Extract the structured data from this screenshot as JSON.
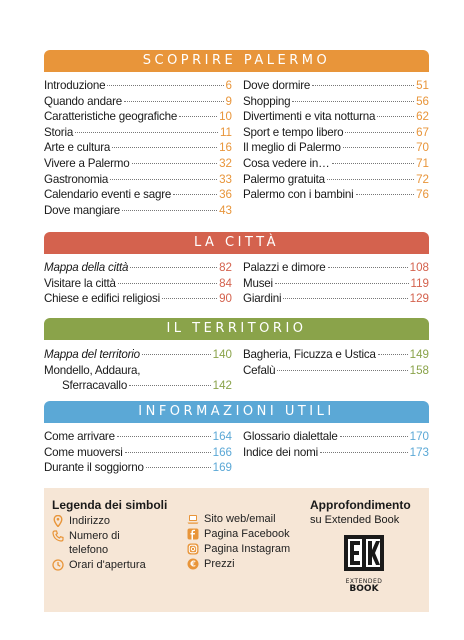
{
  "colors": {
    "orange": "#e8953a",
    "red": "#d4624e",
    "green": "#8aa34a",
    "blue": "#5ba8d6",
    "legend_bg": "#f6e6d6",
    "icon_orange": "#e8953a"
  },
  "sections": [
    {
      "title": "SCOPRIRE PALERMO",
      "left": [
        {
          "label": "Introduzione",
          "page": "6"
        },
        {
          "label": "Quando andare",
          "page": "9"
        },
        {
          "label": "Caratteristiche geografiche",
          "page": "10"
        },
        {
          "label": "Storia",
          "page": "11"
        },
        {
          "label": "Arte e cultura",
          "page": "16"
        },
        {
          "label": "Vivere a Palermo",
          "page": "32"
        },
        {
          "label": "Gastronomia",
          "page": "33"
        },
        {
          "label": "Calendario eventi e sagre",
          "page": "36"
        },
        {
          "label": "Dove mangiare",
          "page": "43"
        }
      ],
      "right": [
        {
          "label": "Dove dormire",
          "page": "51"
        },
        {
          "label": "Shopping",
          "page": "56"
        },
        {
          "label": "Divertimenti e vita notturna",
          "page": "62"
        },
        {
          "label": "Sport e tempo libero",
          "page": "67"
        },
        {
          "label": "Il meglio di Palermo",
          "page": "70"
        },
        {
          "label": "Cosa vedere in…",
          "page": "71"
        },
        {
          "label": "Palermo gratuita",
          "page": "72"
        },
        {
          "label": "Palermo con i bambini",
          "page": "76"
        }
      ]
    },
    {
      "title": "LA CITTÀ",
      "left": [
        {
          "label": "Mappa della città",
          "page": "82"
        },
        {
          "label": "Visitare la città",
          "page": "84"
        },
        {
          "label": "Chiese e edifici religiosi",
          "page": "90"
        }
      ],
      "right": [
        {
          "label": "Palazzi e dimore",
          "page": "108"
        },
        {
          "label": "Musei",
          "page": "119"
        },
        {
          "label": "Giardini",
          "page": "129"
        }
      ]
    },
    {
      "title": "IL TERRITORIO",
      "left": [
        {
          "label": "Mappa del territorio",
          "page": "140"
        },
        {
          "label": "Mondello, Addaura,",
          "page": ""
        },
        {
          "label": "Sferracavallo",
          "page": "142"
        }
      ],
      "right": [
        {
          "label": "Bagheria, Ficuzza e Ustica",
          "page": "149"
        },
        {
          "label": "Cefalù",
          "page": "158"
        }
      ]
    },
    {
      "title": "INFORMAZIONI UTILI",
      "left": [
        {
          "label": "Come arrivare",
          "page": "164"
        },
        {
          "label": "Come muoversi",
          "page": "166"
        },
        {
          "label": "Durante il soggiorno",
          "page": "169"
        }
      ],
      "right": [
        {
          "label": "Glossario dialettale",
          "page": "170"
        },
        {
          "label": "Indice dei nomi",
          "page": "173"
        }
      ]
    }
  ],
  "legend": {
    "title": "Legenda dei simboli",
    "items_left": [
      {
        "icon": "location-pin-icon",
        "label": "Indirizzo"
      },
      {
        "icon": "phone-icon",
        "label": "Numero di\ntelefono"
      },
      {
        "icon": "clock-icon",
        "label": "Orari d'apertura"
      }
    ],
    "items_right": [
      {
        "icon": "laptop-icon",
        "label": "Sito web/email"
      },
      {
        "icon": "facebook-icon",
        "label": "Pagina Facebook"
      },
      {
        "icon": "instagram-icon",
        "label": "Pagina Instagram"
      },
      {
        "icon": "euro-icon",
        "label": "Prezzi"
      }
    ],
    "approfondimento_title": "Approfondimento",
    "approfondimento_sub": "su Extended Book",
    "logo_text_top": "EXTENDED",
    "logo_text_bottom": "BOOK"
  }
}
